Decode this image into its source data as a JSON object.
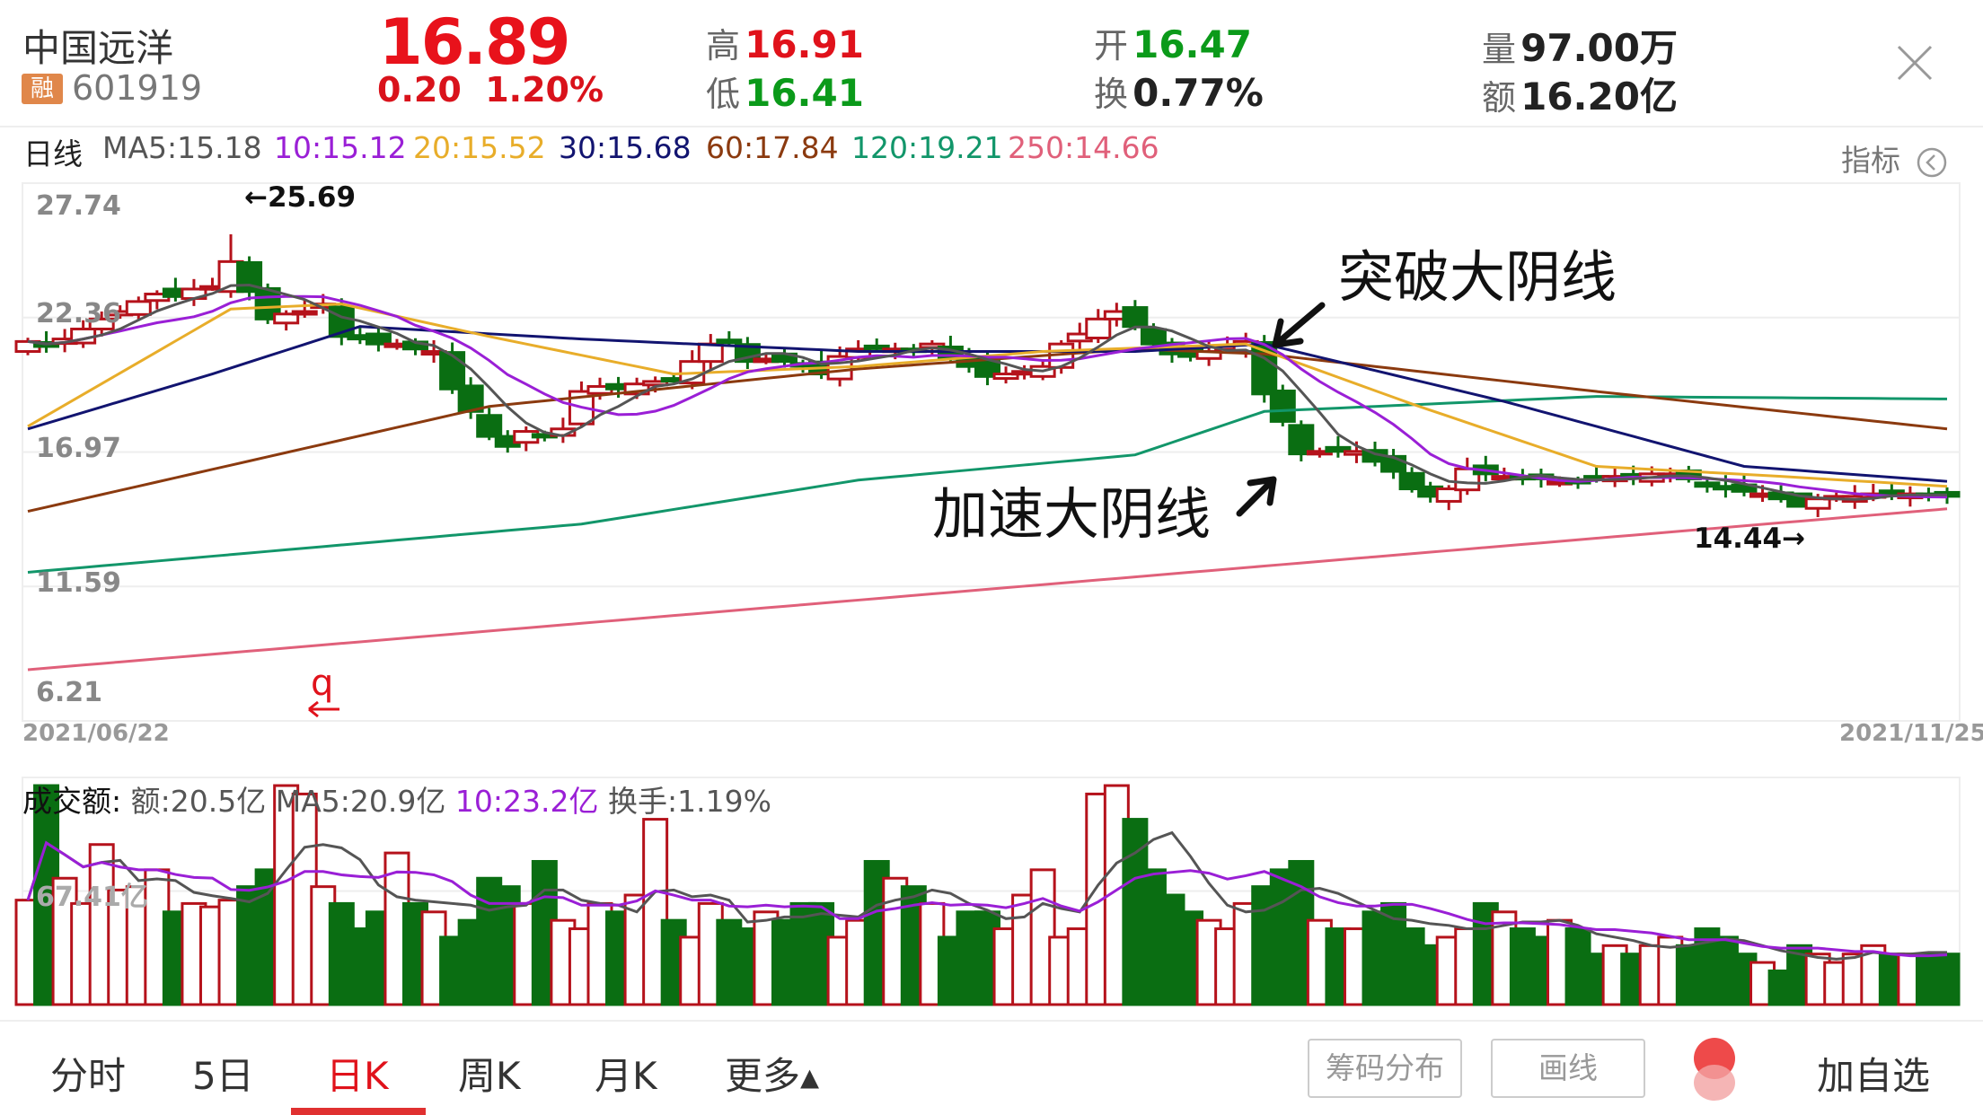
{
  "header": {
    "stock_name": "中国远洋",
    "margin_tag": "融",
    "stock_code": "601919",
    "price": "16.89",
    "change": "0.20",
    "change_pct": "1.20%",
    "high_label": "高",
    "high": "16.91",
    "low_label": "低",
    "low": "16.41",
    "open_label": "开",
    "open": "16.47",
    "turnover_label": "换",
    "turnover": "0.77%",
    "volume_label": "量",
    "volume": "97.00万",
    "amount_label": "额",
    "amount": "16.20亿",
    "close_icon": "close-icon"
  },
  "ma_bar": {
    "period": "日线",
    "ma5": "MA5:15.18",
    "ma10": "10:15.12",
    "ma20": "20:15.52",
    "ma30": "30:15.68",
    "ma60": "60:17.84",
    "ma120": "120:19.21",
    "ma250": "250:14.66",
    "indicator": "指标"
  },
  "colors": {
    "up": "#b5121b",
    "down": "#0a6e12",
    "ma5": "#555555",
    "ma10": "#9a1fd6",
    "ma20": "#e8ad2a",
    "ma30": "#121470",
    "ma60": "#8b3a0f",
    "ma120": "#12966a",
    "ma250": "#e0607a"
  },
  "price_axis": [
    "27.74",
    "22.36",
    "16.97",
    "11.59",
    "6.21"
  ],
  "dates": {
    "start": "2021/06/22",
    "end": "2021/11/25"
  },
  "annotations": {
    "max": "←25.69",
    "min": "14.44→",
    "break": "突破大阴线",
    "accel": "加速大阴线",
    "mark": "q"
  },
  "chart_data": {
    "type": "candlestick",
    "ylim": [
      6.21,
      27.74
    ],
    "closes": [
      21.4,
      21.2,
      21.5,
      21.9,
      22.3,
      22.6,
      23.0,
      23.3,
      23.2,
      23.5,
      23.6,
      24.6,
      23.4,
      22.3,
      22.5,
      22.6,
      22.9,
      21.6,
      21.5,
      21.3,
      21.3,
      21.1,
      21.0,
      19.5,
      18.6,
      17.6,
      17.2,
      17.8,
      17.6,
      17.9,
      19.4,
      19.6,
      19.5,
      19.7,
      19.8,
      19.9,
      20.6,
      21.3,
      21.4,
      20.6,
      20.7,
      20.6,
      20.5,
      20.1,
      20.8,
      21.1,
      21.2,
      21.1,
      21.0,
      21.3,
      20.7,
      20.4,
      20.0,
      20.1,
      20.2,
      20.4,
      21.3,
      21.7,
      22.3,
      22.6,
      22.0,
      21.3,
      20.9,
      20.8,
      21.0,
      21.2,
      21.4,
      19.3,
      18.2,
      16.9,
      17.0,
      17.0,
      17.0,
      16.6,
      16.2,
      15.5,
      15.2,
      15.5,
      16.3,
      16.1,
      16.0,
      15.9,
      15.9,
      15.8,
      15.8,
      15.9,
      16.0,
      16.0,
      16.1,
      16.1,
      15.9,
      15.6,
      15.5,
      15.4,
      15.3,
      15.1,
      14.8,
      15.1,
      15.2,
      15.2,
      15.3,
      15.3,
      15.3,
      15.2,
      15.2
    ],
    "ma_lines": {
      "ma20": [
        [
          0,
          18.0
        ],
        [
          11,
          22.7
        ],
        [
          17,
          22.9
        ],
        [
          25,
          21.6
        ],
        [
          35,
          20.1
        ],
        [
          45,
          20.4
        ],
        [
          55,
          21.0
        ],
        [
          66,
          21.3
        ],
        [
          75,
          18.9
        ],
        [
          85,
          16.4
        ],
        [
          95,
          16.0
        ],
        [
          104,
          15.6
        ]
      ],
      "ma30": [
        [
          0,
          17.9
        ],
        [
          10,
          20.1
        ],
        [
          18,
          22.0
        ],
        [
          30,
          21.5
        ],
        [
          45,
          21.0
        ],
        [
          60,
          21.0
        ],
        [
          67,
          21.3
        ],
        [
          80,
          19.0
        ],
        [
          93,
          16.4
        ],
        [
          104,
          15.8
        ]
      ],
      "ma60": [
        [
          0,
          14.6
        ],
        [
          25,
          18.8
        ],
        [
          45,
          20.3
        ],
        [
          60,
          21.1
        ],
        [
          67,
          20.9
        ],
        [
          85,
          19.4
        ],
        [
          104,
          17.9
        ]
      ],
      "ma120": [
        [
          0,
          12.16
        ],
        [
          30,
          14.09
        ],
        [
          45,
          15.85
        ],
        [
          60,
          16.86
        ],
        [
          67,
          18.6
        ],
        [
          85,
          19.2
        ],
        [
          104,
          19.1
        ]
      ],
      "ma250": [
        [
          0,
          8.26
        ],
        [
          104,
          14.7
        ]
      ]
    },
    "volume": {
      "label": "成交额:",
      "amount": "额:20.5亿",
      "ma5": "MA5:20.9亿",
      "ma10": "10:23.2亿",
      "turnover": "换手:1.19%",
      "mid_axis": "67.41亿",
      "ylim": [
        0,
        134.82
      ],
      "values": [
        62,
        130,
        75,
        60,
        95,
        68,
        70,
        80,
        55,
        60,
        58,
        62,
        70,
        80,
        130,
        125,
        70,
        60,
        45,
        55,
        90,
        60,
        55,
        40,
        50,
        75,
        70,
        60,
        85,
        50,
        45,
        60,
        55,
        65,
        110,
        50,
        40,
        60,
        50,
        45,
        55,
        50,
        60,
        60,
        40,
        50,
        85,
        75,
        70,
        60,
        40,
        55,
        55,
        45,
        65,
        80,
        40,
        45,
        125,
        130,
        110,
        80,
        65,
        55,
        50,
        45,
        60,
        70,
        80,
        85,
        50,
        45,
        45,
        55,
        60,
        45,
        35,
        40,
        45,
        60,
        55,
        45,
        40,
        50,
        45,
        30,
        35,
        30,
        35,
        40,
        35,
        45,
        40,
        30,
        25,
        20,
        35,
        30,
        25,
        30,
        35,
        30,
        30,
        30,
        30
      ]
    }
  },
  "tabs": [
    {
      "label": "分时"
    },
    {
      "label": "5日"
    },
    {
      "label": "日K",
      "active": true
    },
    {
      "label": "周K"
    },
    {
      "label": "月K"
    },
    {
      "label": "更多▴"
    }
  ],
  "buttons": {
    "chips": "筹码分布",
    "draw": "画线",
    "add_watch": "加自选"
  }
}
